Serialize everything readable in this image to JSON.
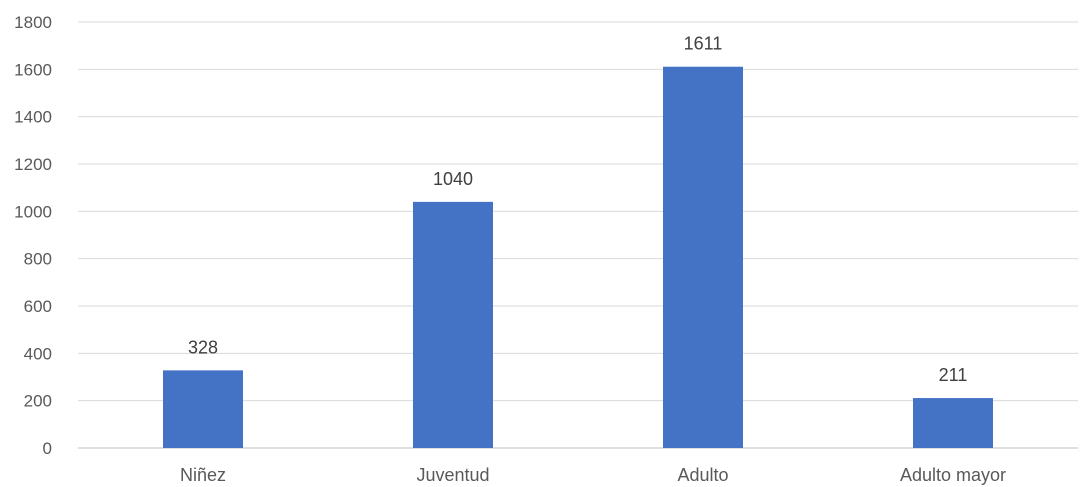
{
  "chart_data": {
    "type": "bar",
    "categories": [
      "Niñez",
      "Juventud",
      "Adulto",
      "Adulto mayor"
    ],
    "values": [
      328,
      1040,
      1611,
      211
    ],
    "title": "",
    "xlabel": "",
    "ylabel": "",
    "ylim": [
      0,
      1800
    ],
    "yticks": [
      0,
      200,
      400,
      600,
      800,
      1000,
      1200,
      1400,
      1600,
      1800
    ],
    "grid": true,
    "data_labels": true,
    "bar_color": "#4472C4",
    "gridline_color": "#D9D9D9"
  }
}
